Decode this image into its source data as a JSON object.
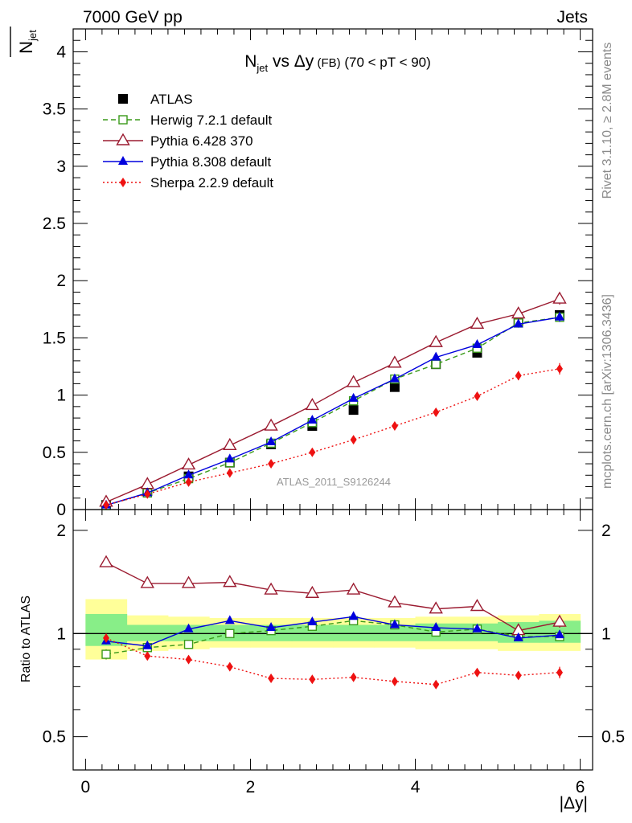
{
  "header": {
    "left": "7000 GeV pp",
    "right": "Jets"
  },
  "side_labels": {
    "rivet": "Rivet 3.1.10, ≥ 2.8M events",
    "mcplots": "mcplots.cern.ch [arXiv:1306.3436]"
  },
  "watermark": "ATLAS_2011_S9126244",
  "colors": {
    "atlas": "#000000",
    "herwig": "#3a9a1a",
    "pythia6": "#9b1b30",
    "pythia8": "#0000dd",
    "sherpa": "#ee1111",
    "band_outer": "#ffff99",
    "band_inner": "#88ee88"
  },
  "chart_data": [
    {
      "type": "line",
      "panel": "main",
      "title_parts": {
        "n": "N",
        "sub": "jet",
        "vs": " vs Δy",
        "fb": " (FB)",
        "range": " (70 < pT <  90)"
      },
      "ylabel_parts": {
        "n": "N",
        "sub": "jet"
      },
      "ylim": [
        0,
        4.2
      ],
      "xlim": [
        -0.15,
        6.15
      ],
      "yticks": [
        "0",
        "0.5",
        "1",
        "1.5",
        "2",
        "2.5",
        "3",
        "3.5",
        "4"
      ],
      "x": [
        0.25,
        0.75,
        1.25,
        1.75,
        2.25,
        2.75,
        3.25,
        3.75,
        4.25,
        4.75,
        5.25,
        5.75
      ],
      "series": [
        {
          "name": "ATLAS",
          "key": "atlas",
          "marker": "filled-square",
          "values": [
            0.04,
            0.16,
            0.29,
            0.41,
            0.57,
            0.73,
            0.87,
            1.07,
            1.27,
            1.37,
            1.65,
            1.7
          ],
          "errors": [
            0.01,
            0.01,
            0.01,
            0.01,
            0.015,
            0.015,
            0.02,
            0.02,
            0.02,
            0.02,
            0.03,
            0.03
          ]
        },
        {
          "name": "Herwig 7.2.1 default",
          "key": "herwig",
          "marker": "open-square",
          "dash": "6,4",
          "values": [
            0.035,
            0.145,
            0.27,
            0.41,
            0.58,
            0.76,
            0.95,
            1.14,
            1.27,
            1.41,
            1.63,
            1.68
          ],
          "errors": [
            0.005,
            0.01,
            0.01,
            0.01,
            0.01,
            0.015,
            0.015,
            0.02,
            0.02,
            0.02,
            0.03,
            0.04
          ]
        },
        {
          "name": "Pythia 6.428 370",
          "key": "pythia6",
          "marker": "open-triangle",
          "values": [
            0.065,
            0.22,
            0.39,
            0.56,
            0.73,
            0.91,
            1.11,
            1.28,
            1.46,
            1.62,
            1.71,
            1.84
          ],
          "errors": [
            0.005,
            0.01,
            0.01,
            0.01,
            0.015,
            0.015,
            0.02,
            0.02,
            0.02,
            0.03,
            0.04,
            0.05
          ]
        },
        {
          "name": "Pythia 8.308 default",
          "key": "pythia8",
          "marker": "filled-triangle",
          "values": [
            0.038,
            0.145,
            0.3,
            0.44,
            0.59,
            0.78,
            0.97,
            1.14,
            1.33,
            1.44,
            1.62,
            1.68
          ],
          "errors": [
            0.005,
            0.01,
            0.01,
            0.01,
            0.01,
            0.015,
            0.015,
            0.02,
            0.02,
            0.02,
            0.03,
            0.04
          ]
        },
        {
          "name": "Sherpa 2.2.9 default",
          "key": "sherpa",
          "marker": "filled-diamond",
          "dash": "2,3",
          "values": [
            0.04,
            0.135,
            0.24,
            0.32,
            0.4,
            0.5,
            0.61,
            0.73,
            0.85,
            0.99,
            1.17,
            1.23
          ],
          "errors": [
            0.005,
            0.01,
            0.01,
            0.01,
            0.01,
            0.015,
            0.015,
            0.02,
            0.02,
            0.03,
            0.04,
            0.05
          ]
        }
      ]
    },
    {
      "type": "line",
      "panel": "ratio",
      "ylabel": "Ratio to ATLAS",
      "xlabel": "|Δy|",
      "log_y": true,
      "ylim": [
        0.4,
        2.3
      ],
      "xlim": [
        -0.15,
        6.15
      ],
      "yticks": [
        {
          "v": 0.5,
          "label": "0.5"
        },
        {
          "v": 1,
          "label": "1"
        },
        {
          "v": 2,
          "label": "2"
        }
      ],
      "xticks": [
        {
          "v": 0,
          "label": "0"
        },
        {
          "v": 2,
          "label": "2"
        },
        {
          "v": 4,
          "label": "4"
        },
        {
          "v": 6,
          "label": "6"
        }
      ],
      "band_edges": [
        0,
        0.5,
        1.0,
        1.5,
        2.0,
        2.5,
        3.0,
        3.5,
        4.0,
        4.5,
        5.0,
        5.5,
        6.0
      ],
      "band_outer": [
        [
          0.84,
          1.26
        ],
        [
          0.89,
          1.13
        ],
        [
          0.9,
          1.12
        ],
        [
          0.91,
          1.11
        ],
        [
          0.91,
          1.11
        ],
        [
          0.91,
          1.11
        ],
        [
          0.91,
          1.11
        ],
        [
          0.91,
          1.11
        ],
        [
          0.9,
          1.12
        ],
        [
          0.9,
          1.12
        ],
        [
          0.89,
          1.13
        ],
        [
          0.89,
          1.14
        ]
      ],
      "band_inner": [
        [
          0.92,
          1.14
        ],
        [
          0.95,
          1.06
        ],
        [
          0.95,
          1.06
        ],
        [
          0.95,
          1.06
        ],
        [
          0.95,
          1.06
        ],
        [
          0.95,
          1.06
        ],
        [
          0.95,
          1.06
        ],
        [
          0.95,
          1.06
        ],
        [
          0.95,
          1.07
        ],
        [
          0.95,
          1.07
        ],
        [
          0.94,
          1.08
        ],
        [
          0.94,
          1.09
        ]
      ],
      "x": [
        0.25,
        0.75,
        1.25,
        1.75,
        2.25,
        2.75,
        3.25,
        3.75,
        4.25,
        4.75,
        5.25,
        5.75
      ],
      "series": [
        {
          "name": "Herwig 7.2.1 default",
          "key": "herwig",
          "marker": "open-square",
          "dash": "6,4",
          "values": [
            0.87,
            0.91,
            0.93,
            1.0,
            1.02,
            1.05,
            1.09,
            1.06,
            1.01,
            1.03,
            0.98,
            0.98
          ],
          "errors": [
            0.03,
            0.01,
            0.01,
            0.01,
            0.01,
            0.01,
            0.01,
            0.01,
            0.01,
            0.01,
            0.02,
            0.02
          ]
        },
        {
          "name": "Pythia 6.428 370",
          "key": "pythia6",
          "marker": "open-triangle",
          "values": [
            1.61,
            1.4,
            1.4,
            1.41,
            1.34,
            1.31,
            1.34,
            1.23,
            1.18,
            1.2,
            1.02,
            1.08
          ],
          "errors": [
            0.04,
            0.01,
            0.01,
            0.01,
            0.01,
            0.01,
            0.01,
            0.01,
            0.01,
            0.01,
            0.02,
            0.04
          ]
        },
        {
          "name": "Pythia 8.308 default",
          "key": "pythia8",
          "marker": "filled-triangle",
          "values": [
            0.95,
            0.92,
            1.03,
            1.09,
            1.04,
            1.08,
            1.12,
            1.06,
            1.04,
            1.03,
            0.97,
            0.99
          ],
          "errors": [
            0.02,
            0.01,
            0.01,
            0.01,
            0.01,
            0.01,
            0.01,
            0.01,
            0.01,
            0.01,
            0.02,
            0.02
          ]
        },
        {
          "name": "Sherpa 2.2.9 default",
          "key": "sherpa",
          "marker": "filled-diamond",
          "dash": "2,3",
          "values": [
            0.97,
            0.86,
            0.84,
            0.8,
            0.74,
            0.735,
            0.745,
            0.725,
            0.71,
            0.77,
            0.755,
            0.77
          ],
          "errors": [
            0.02,
            0.01,
            0.01,
            0.01,
            0.01,
            0.01,
            0.01,
            0.01,
            0.01,
            0.01,
            0.02,
            0.03
          ]
        }
      ]
    }
  ]
}
